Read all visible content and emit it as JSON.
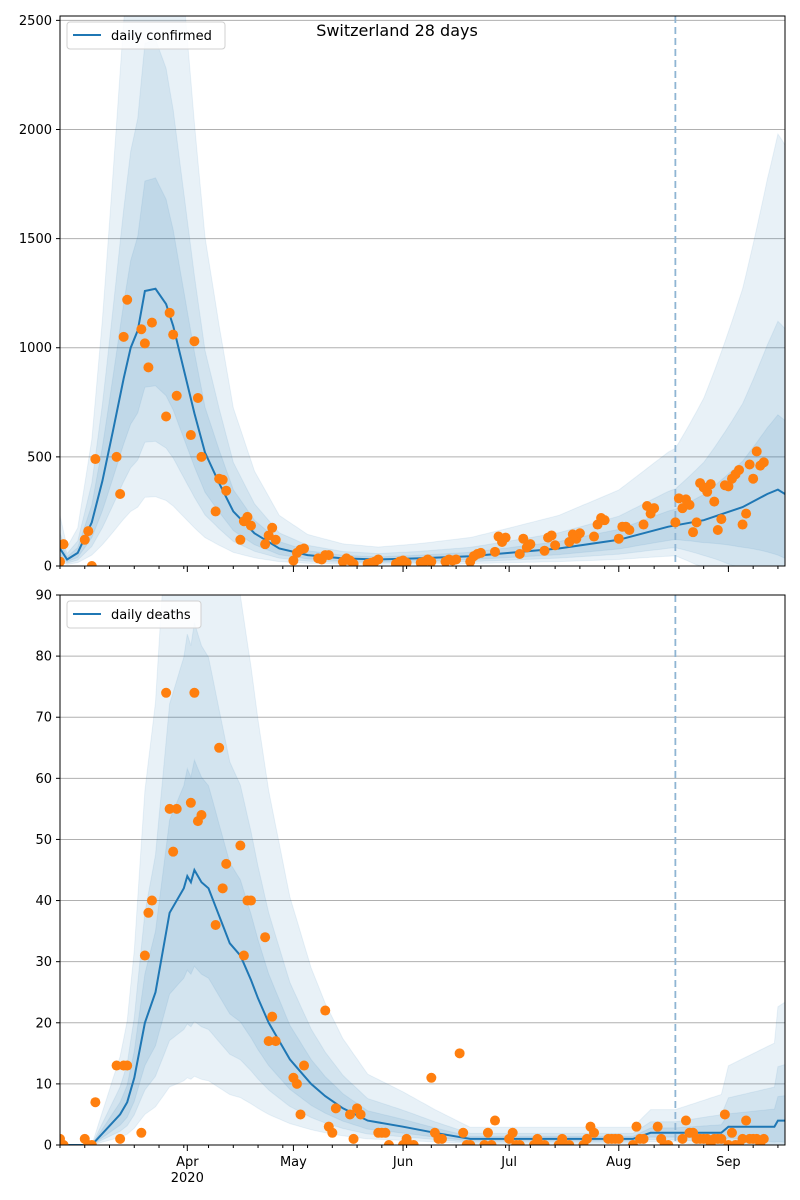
{
  "figure_title": "Switzerland 28 days",
  "chart_data": [
    {
      "type": "line",
      "name": "daily confirmed",
      "legend": {
        "label": "daily confirmed",
        "loc": "upper-left"
      },
      "ylim": [
        0,
        2520
      ],
      "yticks": [
        0,
        500,
        1000,
        1500,
        2000,
        2500
      ],
      "grid": "horizontal",
      "forecast_start": "2020-08-17",
      "model_median": [
        [
          "2020-02-25",
          80
        ],
        [
          "2020-02-27",
          30
        ],
        [
          "2020-03-01",
          60
        ],
        [
          "2020-03-05",
          200
        ],
        [
          "2020-03-08",
          390
        ],
        [
          "2020-03-11",
          620
        ],
        [
          "2020-03-14",
          860
        ],
        [
          "2020-03-16",
          1000
        ],
        [
          "2020-03-18",
          1080
        ],
        [
          "2020-03-20",
          1260
        ],
        [
          "2020-03-23",
          1270
        ],
        [
          "2020-03-26",
          1200
        ],
        [
          "2020-03-28",
          1100
        ],
        [
          "2020-03-31",
          900
        ],
        [
          "2020-04-03",
          700
        ],
        [
          "2020-04-06",
          520
        ],
        [
          "2020-04-10",
          380
        ],
        [
          "2020-04-14",
          250
        ],
        [
          "2020-04-20",
          150
        ],
        [
          "2020-04-27",
          80
        ],
        [
          "2020-05-05",
          50
        ],
        [
          "2020-05-15",
          35
        ],
        [
          "2020-05-25",
          30
        ],
        [
          "2020-06-05",
          35
        ],
        [
          "2020-06-20",
          45
        ],
        [
          "2020-07-01",
          60
        ],
        [
          "2020-07-15",
          80
        ],
        [
          "2020-08-01",
          120
        ],
        [
          "2020-08-15",
          180
        ],
        [
          "2020-08-25",
          210
        ],
        [
          "2020-09-05",
          270
        ],
        [
          "2020-09-12",
          330
        ],
        [
          "2020-09-15",
          350
        ],
        [
          "2020-09-17",
          330
        ]
      ],
      "observed": [
        [
          "2020-02-25",
          20
        ],
        [
          "2020-02-26",
          100
        ],
        [
          "2020-03-03",
          120
        ],
        [
          "2020-03-04",
          160
        ],
        [
          "2020-03-05",
          0
        ],
        [
          "2020-03-06",
          490
        ],
        [
          "2020-03-12",
          500
        ],
        [
          "2020-03-13",
          330
        ],
        [
          "2020-03-14",
          1050
        ],
        [
          "2020-03-15",
          1220
        ],
        [
          "2020-03-19",
          1085
        ],
        [
          "2020-03-20",
          1020
        ],
        [
          "2020-03-21",
          910
        ],
        [
          "2020-03-22",
          1115
        ],
        [
          "2020-03-26",
          685
        ],
        [
          "2020-03-27",
          1160
        ],
        [
          "2020-03-28",
          1060
        ],
        [
          "2020-03-29",
          780
        ],
        [
          "2020-04-02",
          600
        ],
        [
          "2020-04-03",
          1030
        ],
        [
          "2020-04-04",
          770
        ],
        [
          "2020-04-05",
          500
        ],
        [
          "2020-04-09",
          250
        ],
        [
          "2020-04-10",
          400
        ],
        [
          "2020-04-11",
          395
        ],
        [
          "2020-04-12",
          345
        ],
        [
          "2020-04-16",
          120
        ],
        [
          "2020-04-17",
          205
        ],
        [
          "2020-04-18",
          225
        ],
        [
          "2020-04-19",
          185
        ],
        [
          "2020-04-23",
          100
        ],
        [
          "2020-04-24",
          140
        ],
        [
          "2020-04-25",
          175
        ],
        [
          "2020-04-26",
          120
        ],
        [
          "2020-05-01",
          25
        ],
        [
          "2020-05-02",
          60
        ],
        [
          "2020-05-03",
          75
        ],
        [
          "2020-05-04",
          80
        ],
        [
          "2020-05-08",
          35
        ],
        [
          "2020-05-09",
          30
        ],
        [
          "2020-05-10",
          50
        ],
        [
          "2020-05-11",
          50
        ],
        [
          "2020-05-15",
          20
        ],
        [
          "2020-05-16",
          35
        ],
        [
          "2020-05-17",
          25
        ],
        [
          "2020-05-18",
          10
        ],
        [
          "2020-05-22",
          10
        ],
        [
          "2020-05-23",
          15
        ],
        [
          "2020-05-24",
          20
        ],
        [
          "2020-05-25",
          30
        ],
        [
          "2020-05-30",
          10
        ],
        [
          "2020-05-31",
          20
        ],
        [
          "2020-06-01",
          25
        ],
        [
          "2020-06-02",
          15
        ],
        [
          "2020-06-06",
          15
        ],
        [
          "2020-06-07",
          20
        ],
        [
          "2020-06-08",
          30
        ],
        [
          "2020-06-09",
          20
        ],
        [
          "2020-06-13",
          20
        ],
        [
          "2020-06-14",
          30
        ],
        [
          "2020-06-15",
          25
        ],
        [
          "2020-06-16",
          30
        ],
        [
          "2020-06-20",
          20
        ],
        [
          "2020-06-21",
          45
        ],
        [
          "2020-06-22",
          55
        ],
        [
          "2020-06-23",
          60
        ],
        [
          "2020-06-27",
          65
        ],
        [
          "2020-06-28",
          135
        ],
        [
          "2020-06-29",
          110
        ],
        [
          "2020-06-30",
          130
        ],
        [
          "2020-07-04",
          55
        ],
        [
          "2020-07-05",
          125
        ],
        [
          "2020-07-06",
          85
        ],
        [
          "2020-07-07",
          100
        ],
        [
          "2020-07-11",
          70
        ],
        [
          "2020-07-12",
          130
        ],
        [
          "2020-07-13",
          140
        ],
        [
          "2020-07-14",
          95
        ],
        [
          "2020-07-18",
          110
        ],
        [
          "2020-07-19",
          145
        ],
        [
          "2020-07-20",
          125
        ],
        [
          "2020-07-21",
          150
        ],
        [
          "2020-07-25",
          135
        ],
        [
          "2020-07-26",
          190
        ],
        [
          "2020-07-27",
          220
        ],
        [
          "2020-07-28",
          210
        ],
        [
          "2020-08-01",
          125
        ],
        [
          "2020-08-02",
          180
        ],
        [
          "2020-08-03",
          180
        ],
        [
          "2020-08-04",
          165
        ],
        [
          "2020-08-08",
          190
        ],
        [
          "2020-08-09",
          275
        ],
        [
          "2020-08-10",
          240
        ],
        [
          "2020-08-11",
          265
        ],
        [
          "2020-08-17",
          200
        ],
        [
          "2020-08-18",
          310
        ],
        [
          "2020-08-19",
          265
        ],
        [
          "2020-08-20",
          305
        ],
        [
          "2020-08-21",
          280
        ],
        [
          "2020-08-22",
          155
        ],
        [
          "2020-08-23",
          200
        ],
        [
          "2020-08-24",
          380
        ],
        [
          "2020-08-25",
          360
        ],
        [
          "2020-08-26",
          340
        ],
        [
          "2020-08-27",
          375
        ],
        [
          "2020-08-28",
          295
        ],
        [
          "2020-08-29",
          165
        ],
        [
          "2020-08-30",
          215
        ],
        [
          "2020-08-31",
          370
        ],
        [
          "2020-09-01",
          365
        ],
        [
          "2020-09-02",
          400
        ],
        [
          "2020-09-03",
          420
        ],
        [
          "2020-09-04",
          440
        ],
        [
          "2020-09-05",
          190
        ],
        [
          "2020-09-06",
          240
        ],
        [
          "2020-09-07",
          465
        ],
        [
          "2020-09-08",
          400
        ],
        [
          "2020-09-09",
          525
        ],
        [
          "2020-09-10",
          460
        ],
        [
          "2020-09-11",
          475
        ]
      ]
    },
    {
      "type": "line",
      "name": "daily deaths",
      "legend": {
        "label": "daily deaths",
        "loc": "upper-left"
      },
      "ylim": [
        0,
        90
      ],
      "yticks": [
        0,
        10,
        20,
        30,
        40,
        50,
        60,
        70,
        80,
        90
      ],
      "grid": "horizontal",
      "forecast_start": "2020-08-17",
      "model_median": [
        [
          "2020-02-25",
          0
        ],
        [
          "2020-03-05",
          0
        ],
        [
          "2020-03-13",
          5
        ],
        [
          "2020-03-15",
          7
        ],
        [
          "2020-03-17",
          11
        ],
        [
          "2020-03-20",
          20
        ],
        [
          "2020-03-23",
          25
        ],
        [
          "2020-03-27",
          38
        ],
        [
          "2020-03-31",
          42
        ],
        [
          "2020-04-01",
          44
        ],
        [
          "2020-04-02",
          43
        ],
        [
          "2020-04-03",
          45
        ],
        [
          "2020-04-05",
          43
        ],
        [
          "2020-04-07",
          42
        ],
        [
          "2020-04-09",
          39
        ],
        [
          "2020-04-11",
          36
        ],
        [
          "2020-04-13",
          33
        ],
        [
          "2020-04-16",
          31
        ],
        [
          "2020-04-19",
          27
        ],
        [
          "2020-04-21",
          24
        ],
        [
          "2020-04-24",
          20
        ],
        [
          "2020-04-27",
          17
        ],
        [
          "2020-04-30",
          14
        ],
        [
          "2020-05-03",
          12
        ],
        [
          "2020-05-06",
          10
        ],
        [
          "2020-05-10",
          8
        ],
        [
          "2020-05-15",
          6
        ],
        [
          "2020-05-22",
          4
        ],
        [
          "2020-06-01",
          3
        ],
        [
          "2020-06-10",
          2
        ],
        [
          "2020-06-20",
          1
        ],
        [
          "2020-08-05",
          1
        ],
        [
          "2020-08-10",
          2
        ],
        [
          "2020-08-30",
          2
        ],
        [
          "2020-09-01",
          3
        ],
        [
          "2020-09-14",
          3
        ],
        [
          "2020-09-15",
          4
        ],
        [
          "2020-09-17",
          4
        ]
      ],
      "observed": [
        [
          "2020-02-25",
          1
        ],
        [
          "2020-02-26",
          0
        ],
        [
          "2020-03-03",
          1
        ],
        [
          "2020-03-04",
          0
        ],
        [
          "2020-03-05",
          0
        ],
        [
          "2020-03-06",
          7
        ],
        [
          "2020-03-12",
          13
        ],
        [
          "2020-03-13",
          1
        ],
        [
          "2020-03-14",
          13
        ],
        [
          "2020-03-15",
          13
        ],
        [
          "2020-03-19",
          2
        ],
        [
          "2020-03-20",
          31
        ],
        [
          "2020-03-21",
          38
        ],
        [
          "2020-03-22",
          40
        ],
        [
          "2020-03-26",
          74
        ],
        [
          "2020-03-27",
          55
        ],
        [
          "2020-03-28",
          48
        ],
        [
          "2020-03-29",
          55
        ],
        [
          "2020-04-02",
          56
        ],
        [
          "2020-04-03",
          74
        ],
        [
          "2020-04-04",
          53
        ],
        [
          "2020-04-05",
          54
        ],
        [
          "2020-04-09",
          36
        ],
        [
          "2020-04-10",
          65
        ],
        [
          "2020-04-11",
          42
        ],
        [
          "2020-04-12",
          46
        ],
        [
          "2020-04-16",
          49
        ],
        [
          "2020-04-17",
          31
        ],
        [
          "2020-04-18",
          40
        ],
        [
          "2020-04-19",
          40
        ],
        [
          "2020-04-23",
          34
        ],
        [
          "2020-04-24",
          17
        ],
        [
          "2020-04-25",
          21
        ],
        [
          "2020-04-26",
          17
        ],
        [
          "2020-05-01",
          11
        ],
        [
          "2020-05-02",
          10
        ],
        [
          "2020-05-03",
          5
        ],
        [
          "2020-05-04",
          13
        ],
        [
          "2020-05-10",
          22
        ],
        [
          "2020-05-11",
          3
        ],
        [
          "2020-05-12",
          2
        ],
        [
          "2020-05-13",
          6
        ],
        [
          "2020-05-17",
          5
        ],
        [
          "2020-05-18",
          1
        ],
        [
          "2020-05-19",
          6
        ],
        [
          "2020-05-20",
          5
        ],
        [
          "2020-05-25",
          2
        ],
        [
          "2020-05-26",
          2
        ],
        [
          "2020-05-27",
          2
        ],
        [
          "2020-05-28",
          0
        ],
        [
          "2020-06-01",
          0
        ],
        [
          "2020-06-02",
          1
        ],
        [
          "2020-06-03",
          0
        ],
        [
          "2020-06-04",
          0
        ],
        [
          "2020-06-09",
          11
        ],
        [
          "2020-06-10",
          2
        ],
        [
          "2020-06-11",
          1
        ],
        [
          "2020-06-12",
          1
        ],
        [
          "2020-06-17",
          15
        ],
        [
          "2020-06-18",
          2
        ],
        [
          "2020-06-19",
          0
        ],
        [
          "2020-06-20",
          0
        ],
        [
          "2020-06-24",
          0
        ],
        [
          "2020-06-25",
          2
        ],
        [
          "2020-06-26",
          0
        ],
        [
          "2020-06-27",
          4
        ],
        [
          "2020-07-01",
          1
        ],
        [
          "2020-07-02",
          2
        ],
        [
          "2020-07-03",
          0
        ],
        [
          "2020-07-04",
          0
        ],
        [
          "2020-07-08",
          0
        ],
        [
          "2020-07-09",
          1
        ],
        [
          "2020-07-10",
          0
        ],
        [
          "2020-07-11",
          0
        ],
        [
          "2020-07-15",
          0
        ],
        [
          "2020-07-16",
          1
        ],
        [
          "2020-07-17",
          0
        ],
        [
          "2020-07-18",
          0
        ],
        [
          "2020-07-22",
          0
        ],
        [
          "2020-07-23",
          1
        ],
        [
          "2020-07-24",
          3
        ],
        [
          "2020-07-25",
          2
        ],
        [
          "2020-07-29",
          1
        ],
        [
          "2020-07-30",
          1
        ],
        [
          "2020-07-31",
          1
        ],
        [
          "2020-08-01",
          1
        ],
        [
          "2020-08-05",
          0
        ],
        [
          "2020-08-06",
          3
        ],
        [
          "2020-08-07",
          1
        ],
        [
          "2020-08-08",
          1
        ],
        [
          "2020-08-12",
          3
        ],
        [
          "2020-08-13",
          1
        ],
        [
          "2020-08-14",
          0
        ],
        [
          "2020-08-15",
          0
        ],
        [
          "2020-08-19",
          1
        ],
        [
          "2020-08-20",
          4
        ],
        [
          "2020-08-21",
          2
        ],
        [
          "2020-08-22",
          2
        ],
        [
          "2020-08-23",
          1
        ],
        [
          "2020-08-24",
          1
        ],
        [
          "2020-08-25",
          1
        ],
        [
          "2020-08-26",
          1
        ],
        [
          "2020-08-27",
          0
        ],
        [
          "2020-08-28",
          1
        ],
        [
          "2020-08-29",
          1
        ],
        [
          "2020-08-30",
          1
        ],
        [
          "2020-08-31",
          5
        ],
        [
          "2020-09-01",
          0
        ],
        [
          "2020-09-02",
          2
        ],
        [
          "2020-09-03",
          0
        ],
        [
          "2020-09-04",
          0
        ],
        [
          "2020-09-05",
          1
        ],
        [
          "2020-09-06",
          4
        ],
        [
          "2020-09-07",
          1
        ],
        [
          "2020-09-08",
          1
        ],
        [
          "2020-09-09",
          1
        ],
        [
          "2020-09-10",
          0
        ],
        [
          "2020-09-11",
          1
        ]
      ]
    }
  ],
  "x_axis": {
    "start": "2020-02-25",
    "end": "2020-09-17",
    "month_ticks": [
      {
        "label": "Apr",
        "date": "2020-04-01",
        "year": "2020"
      },
      {
        "label": "May",
        "date": "2020-05-01"
      },
      {
        "label": "Jun",
        "date": "2020-06-01"
      },
      {
        "label": "Jul",
        "date": "2020-07-01"
      },
      {
        "label": "Aug",
        "date": "2020-08-01"
      },
      {
        "label": "Sep",
        "date": "2020-09-01"
      }
    ]
  },
  "colors": {
    "line": "#1f77b4",
    "observed": "#ff7f0e",
    "band": "#1f77b4",
    "grid": "#b0b0b0",
    "forecast_marker": "#8fb5d3"
  }
}
